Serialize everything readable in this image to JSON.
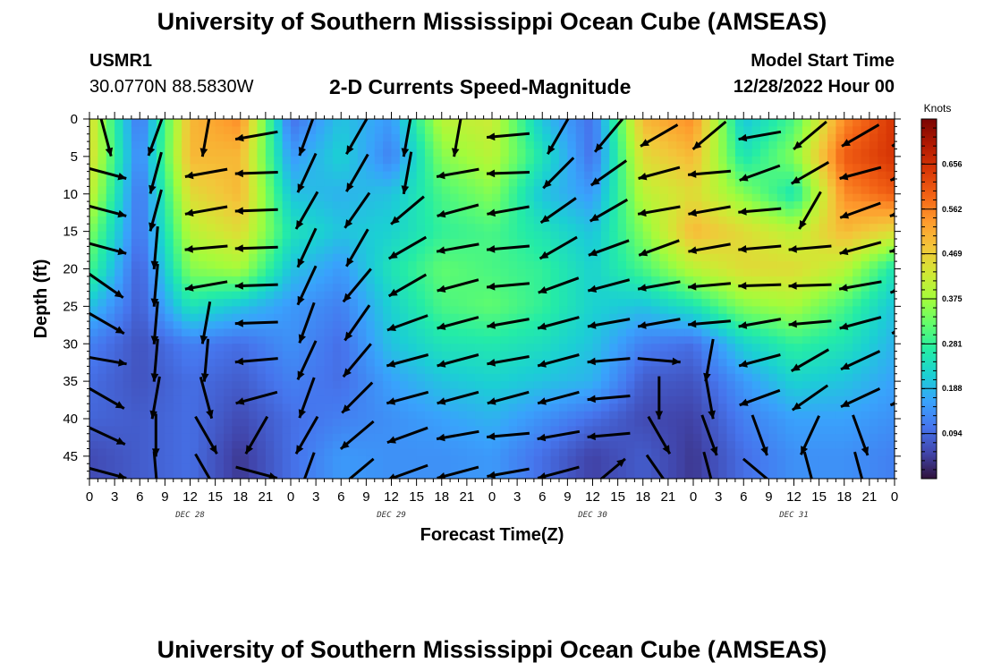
{
  "header": {
    "title": "University of Southern Mississippi Ocean Cube (AMSEAS)",
    "station": "USMR1",
    "coords": "30.0770N  88.5830W",
    "subtitle": "2-D Currents Speed-Magnitude",
    "model_label": "Model Start Time",
    "model_time": "12/28/2022 Hour 00"
  },
  "footer": {
    "title": "University of Southern Mississippi Ocean Cube (AMSEAS)"
  },
  "chart_data": {
    "type": "heatmap",
    "xlabel": "Forecast Time(Z)",
    "ylabel": "Depth (ft)",
    "x_tick_labels": [
      "0",
      "3",
      "6",
      "9",
      "12",
      "15",
      "18",
      "21",
      "0",
      "3",
      "6",
      "9",
      "12",
      "15",
      "18",
      "21",
      "0",
      "3",
      "6",
      "9",
      "12",
      "15",
      "18",
      "21",
      "0",
      "3",
      "6",
      "9",
      "12",
      "15",
      "18",
      "21",
      "0"
    ],
    "date_labels": [
      {
        "label": "DEC 28",
        "hour": 12
      },
      {
        "label": "DEC 29",
        "hour": 36
      },
      {
        "label": "DEC 30",
        "hour": 60
      },
      {
        "label": "DEC 31",
        "hour": 84
      }
    ],
    "x_range_hours": [
      0,
      96
    ],
    "y_ticks": [
      0,
      5,
      10,
      15,
      20,
      25,
      30,
      35,
      40,
      45
    ],
    "y_range_ft": [
      0,
      48
    ],
    "colorbar": {
      "unit": "Knots",
      "ticks": [
        0.094,
        0.188,
        0.281,
        0.375,
        0.469,
        0.562,
        0.656
      ],
      "range": [
        0.0,
        0.75
      ],
      "colors": [
        "#30123b",
        "#4145ab",
        "#4675ed",
        "#39a2fc",
        "#1bcfd4",
        "#24eca6",
        "#61fc6c",
        "#a4fc3b",
        "#d1e834",
        "#f3c63a",
        "#fe9b2d",
        "#f36315",
        "#d93806",
        "#b11901",
        "#7a0403"
      ]
    },
    "depth_rows_ft": [
      0,
      5,
      10,
      15,
      20,
      25,
      30,
      35,
      40,
      45
    ],
    "time_cols_hours": [
      0,
      6,
      12,
      18,
      24,
      30,
      36,
      42,
      48,
      54,
      60,
      66,
      72,
      78,
      84,
      90,
      96
    ],
    "speed_knots": [
      [
        0.45,
        0.1,
        0.5,
        0.55,
        0.1,
        0.2,
        0.15,
        0.4,
        0.42,
        0.2,
        0.1,
        0.5,
        0.55,
        0.2,
        0.3,
        0.55,
        0.65
      ],
      [
        0.45,
        0.12,
        0.5,
        0.5,
        0.15,
        0.22,
        0.12,
        0.35,
        0.4,
        0.25,
        0.1,
        0.45,
        0.5,
        0.25,
        0.35,
        0.6,
        0.65
      ],
      [
        0.42,
        0.1,
        0.45,
        0.5,
        0.2,
        0.18,
        0.2,
        0.3,
        0.35,
        0.2,
        0.15,
        0.4,
        0.45,
        0.35,
        0.25,
        0.55,
        0.6
      ],
      [
        0.35,
        0.1,
        0.4,
        0.45,
        0.25,
        0.2,
        0.22,
        0.28,
        0.3,
        0.25,
        0.2,
        0.35,
        0.5,
        0.45,
        0.4,
        0.5,
        0.45
      ],
      [
        0.3,
        0.08,
        0.35,
        0.38,
        0.2,
        0.15,
        0.25,
        0.32,
        0.3,
        0.28,
        0.22,
        0.3,
        0.4,
        0.45,
        0.45,
        0.4,
        0.25
      ],
      [
        0.2,
        0.08,
        0.25,
        0.2,
        0.15,
        0.12,
        0.22,
        0.3,
        0.32,
        0.28,
        0.22,
        0.2,
        0.25,
        0.35,
        0.38,
        0.3,
        0.2
      ],
      [
        0.12,
        0.07,
        0.12,
        0.1,
        0.14,
        0.1,
        0.2,
        0.25,
        0.26,
        0.24,
        0.2,
        0.12,
        0.1,
        0.22,
        0.28,
        0.25,
        0.18
      ],
      [
        0.1,
        0.07,
        0.1,
        0.08,
        0.12,
        0.1,
        0.16,
        0.2,
        0.22,
        0.2,
        0.18,
        0.08,
        0.07,
        0.15,
        0.22,
        0.2,
        0.16
      ],
      [
        0.09,
        0.08,
        0.1,
        0.06,
        0.1,
        0.12,
        0.14,
        0.16,
        0.18,
        0.14,
        0.1,
        0.06,
        0.05,
        0.12,
        0.16,
        0.16,
        0.14
      ],
      [
        0.06,
        0.08,
        0.1,
        0.04,
        0.1,
        0.15,
        0.14,
        0.14,
        0.15,
        0.1,
        0.05,
        0.08,
        0.04,
        0.1,
        0.14,
        0.14,
        0.12
      ]
    ],
    "vector_direction_deg": [
      [
        -75,
        -110,
        -100,
        -170,
        -110,
        -120,
        -100,
        -100,
        -175,
        -120,
        -130,
        -150,
        -140,
        -170,
        -140,
        -150,
        -150
      ],
      [
        -15,
        -105,
        -170,
        -178,
        -115,
        -120,
        -100,
        -170,
        -178,
        -135,
        -145,
        -165,
        -175,
        -160,
        -150,
        -165,
        -160
      ],
      [
        -15,
        -105,
        -170,
        -178,
        -120,
        -125,
        -140,
        -165,
        -170,
        -145,
        -150,
        -170,
        -170,
        -175,
        -120,
        -160,
        -165
      ],
      [
        -15,
        -95,
        -175,
        -178,
        -115,
        -120,
        -150,
        -170,
        -175,
        -150,
        -160,
        -160,
        -170,
        -175,
        -175,
        -165,
        -170
      ],
      [
        -35,
        -95,
        -170,
        -178,
        -115,
        -130,
        -150,
        -165,
        -175,
        -160,
        -165,
        -170,
        -175,
        -178,
        -178,
        -170,
        -160
      ],
      [
        -30,
        -95,
        -100,
        -178,
        -110,
        -125,
        -160,
        -165,
        -170,
        -165,
        -170,
        -170,
        -175,
        -170,
        -175,
        -165,
        -150
      ],
      [
        -10,
        -95,
        -95,
        -175,
        -115,
        -130,
        -165,
        -165,
        -170,
        -165,
        -175,
        -5,
        -100,
        -165,
        -150,
        -155,
        -130
      ],
      [
        -30,
        -100,
        -75,
        -165,
        -110,
        -135,
        -165,
        -165,
        -165,
        -165,
        -175,
        -90,
        -80,
        -160,
        -145,
        -155,
        -160
      ],
      [
        -25,
        -90,
        -60,
        -120,
        -120,
        -140,
        -160,
        -170,
        -175,
        -170,
        -175,
        -60,
        -70,
        -70,
        -115,
        -70,
        -105
      ],
      [
        -15,
        -85,
        -60,
        -15,
        -110,
        -140,
        -160,
        -165,
        -170,
        -165,
        40,
        -55,
        -75,
        -40,
        -75,
        -75,
        -110
      ]
    ]
  }
}
